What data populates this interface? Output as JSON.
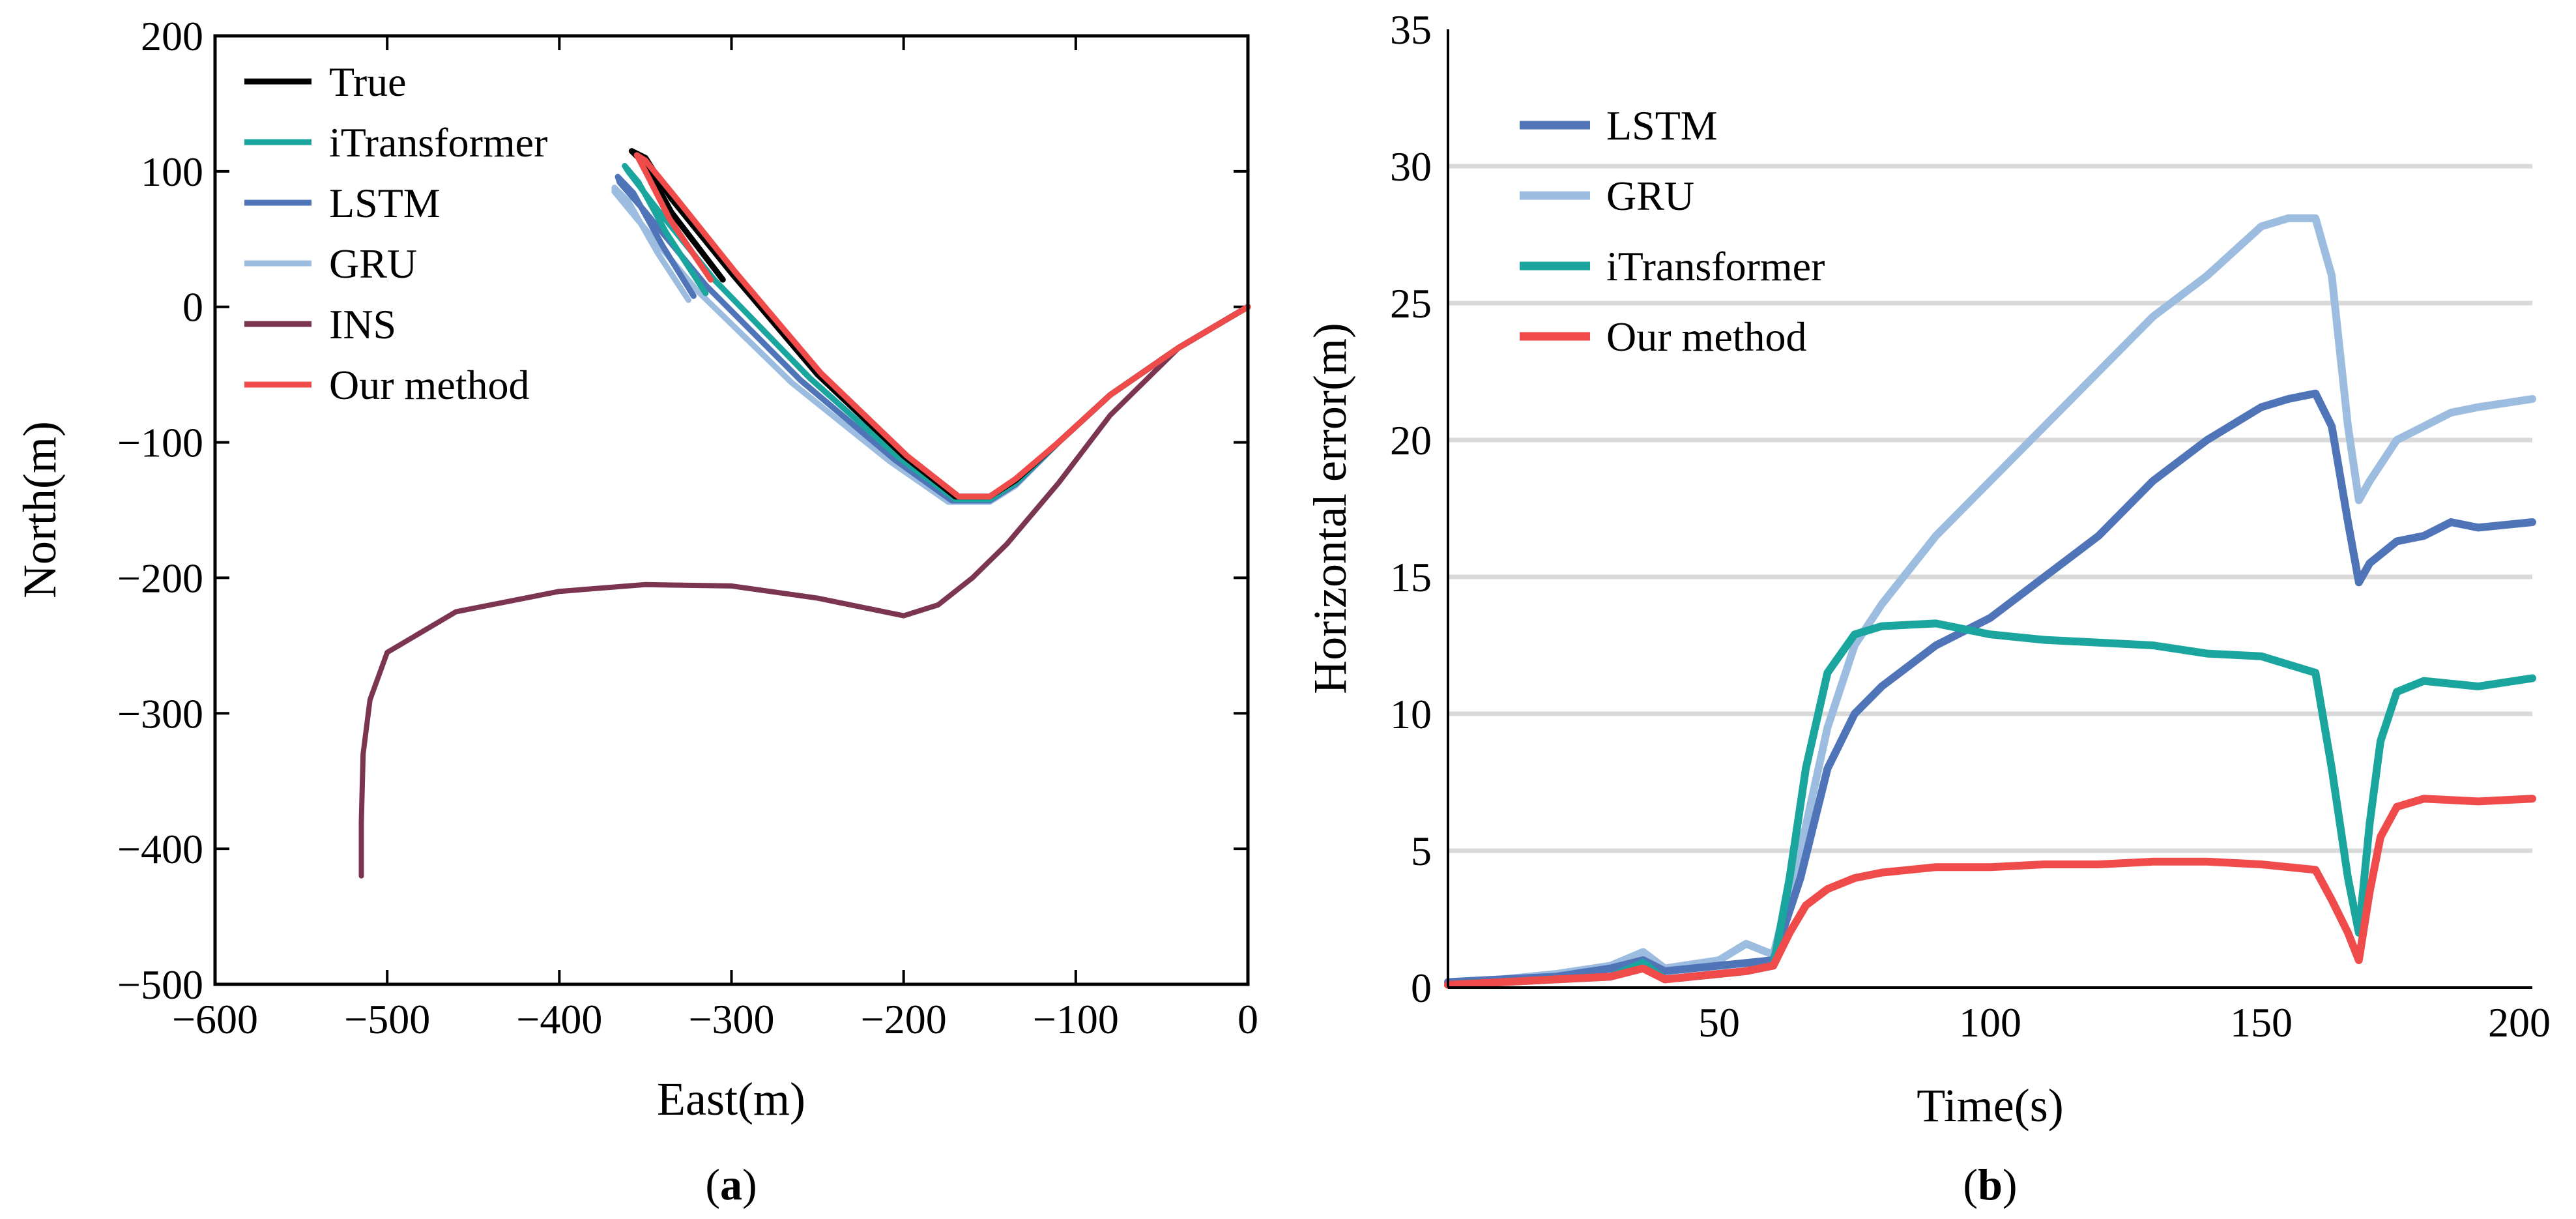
{
  "chart_data": [
    {
      "type": "line",
      "caption": {
        "open": "(",
        "letter": "a",
        "close": ")"
      },
      "xlabel": "East(m)",
      "ylabel": "North(m)",
      "xlim": [
        -600,
        0
      ],
      "ylim": [
        -500,
        200
      ],
      "xticks": [
        -600,
        -500,
        -400,
        -300,
        -200,
        -100,
        0
      ],
      "yticks": [
        200,
        100,
        0,
        -100,
        -200,
        -300,
        -400,
        -500
      ],
      "xtick_labels": [
        "−600",
        "−500",
        "−400",
        "−300",
        "−200",
        "−100",
        "0"
      ],
      "ytick_labels": [
        "200",
        "100",
        "0",
        "−100",
        "−200",
        "−300",
        "−400",
        "−500"
      ],
      "grid": false,
      "legend_position": "top-left",
      "series": [
        {
          "name": "True",
          "color": "#000000",
          "x": [
            0,
            -40,
            -80,
            -110,
            -135,
            -150,
            -170,
            -200,
            -250,
            -300,
            -335,
            -350,
            -358,
            -350,
            -335,
            -305
          ],
          "y": [
            0,
            -30,
            -65,
            -100,
            -128,
            -140,
            -140,
            -110,
            -50,
            25,
            80,
            110,
            115,
            105,
            70,
            20
          ]
        },
        {
          "name": "iTransformer",
          "color": "#1aa59e",
          "x": [
            0,
            -40,
            -80,
            -110,
            -135,
            -150,
            -170,
            -202,
            -255,
            -310,
            -345,
            -360,
            -362,
            -354,
            -338,
            -315
          ],
          "y": [
            0,
            -30,
            -65,
            -100,
            -130,
            -142,
            -142,
            -112,
            -52,
            20,
            75,
            100,
            104,
            92,
            55,
            10
          ]
        },
        {
          "name": "LSTM",
          "color": "#4f74b8",
          "x": [
            0,
            -40,
            -80,
            -110,
            -135,
            -150,
            -172,
            -205,
            -260,
            -315,
            -350,
            -365,
            -366,
            -357,
            -340,
            -322
          ],
          "y": [
            0,
            -30,
            -65,
            -100,
            -131,
            -143,
            -143,
            -113,
            -54,
            16,
            70,
            92,
            96,
            84,
            45,
            8
          ]
        },
        {
          "name": "GRU",
          "color": "#9dbde0",
          "x": [
            0,
            -40,
            -80,
            -110,
            -135,
            -150,
            -174,
            -208,
            -265,
            -320,
            -355,
            -368,
            -368,
            -360,
            -343,
            -325
          ],
          "y": [
            0,
            -30,
            -65,
            -100,
            -132,
            -144,
            -144,
            -114,
            -56,
            12,
            65,
            85,
            88,
            78,
            40,
            5
          ]
        },
        {
          "name": "INS",
          "color": "#7b3550",
          "x": [
            0,
            -40,
            -80,
            -110,
            -140,
            -160,
            -180,
            -200,
            -250,
            -300,
            -350,
            -400,
            -460,
            -500,
            -510,
            -514,
            -515,
            -515
          ],
          "y": [
            0,
            -30,
            -80,
            -130,
            -175,
            -200,
            -220,
            -228,
            -215,
            -206,
            -205,
            -210,
            -225,
            -255,
            -290,
            -330,
            -380,
            -420
          ]
        },
        {
          "name": "Our method",
          "color": "#f04b4b",
          "x": [
            0,
            -40,
            -80,
            -110,
            -135,
            -150,
            -168,
            -198,
            -248,
            -298,
            -332,
            -350,
            -355,
            -350,
            -336,
            -312
          ],
          "y": [
            0,
            -30,
            -65,
            -100,
            -127,
            -140,
            -140,
            -110,
            -49,
            26,
            80,
            108,
            112,
            100,
            65,
            20
          ]
        }
      ]
    },
    {
      "type": "line",
      "caption": {
        "open": "(",
        "letter": "b",
        "close": ")"
      },
      "xlabel": "Time(s)",
      "ylabel": "Horizontal error(m)",
      "xlim": [
        0,
        200
      ],
      "ylim": [
        0,
        35
      ],
      "xticks": [
        50,
        100,
        150,
        200
      ],
      "yticks": [
        0,
        5,
        10,
        15,
        20,
        25,
        30,
        35
      ],
      "xtick_labels": [
        "50",
        "100",
        "150",
        "200"
      ],
      "ytick_labels": [
        "0",
        "5",
        "10",
        "15",
        "20",
        "25",
        "30",
        "35"
      ],
      "grid": true,
      "legend_position": "top-left",
      "series": [
        {
          "name": "LSTM",
          "color": "#4f74b8",
          "x": [
            0,
            10,
            20,
            30,
            36,
            40,
            50,
            55,
            60,
            65,
            70,
            75,
            80,
            90,
            100,
            110,
            120,
            130,
            140,
            150,
            155,
            160,
            163,
            166,
            168,
            170,
            175,
            180,
            185,
            190,
            200
          ],
          "y": [
            0.2,
            0.3,
            0.4,
            0.7,
            1.0,
            0.6,
            0.8,
            0.9,
            1.0,
            4.0,
            8.0,
            10.0,
            11.0,
            12.5,
            13.5,
            15.0,
            16.5,
            18.5,
            20.0,
            21.2,
            21.5,
            21.7,
            20.5,
            17.0,
            14.8,
            15.5,
            16.3,
            16.5,
            17.0,
            16.8,
            17.0
          ]
        },
        {
          "name": "GRU",
          "color": "#9dbde0",
          "x": [
            0,
            10,
            20,
            30,
            36,
            40,
            50,
            55,
            60,
            65,
            70,
            75,
            80,
            90,
            100,
            110,
            120,
            130,
            140,
            150,
            155,
            160,
            163,
            166,
            168,
            170,
            175,
            180,
            185,
            190,
            200
          ],
          "y": [
            0.2,
            0.3,
            0.5,
            0.8,
            1.3,
            0.7,
            1.0,
            1.6,
            1.2,
            5.0,
            9.5,
            12.5,
            14.0,
            16.5,
            18.5,
            20.5,
            22.5,
            24.5,
            26.0,
            27.8,
            28.1,
            28.1,
            26.0,
            20.5,
            17.8,
            18.5,
            20.0,
            20.5,
            21.0,
            21.2,
            21.5
          ]
        },
        {
          "name": "iTransformer",
          "color": "#1aa59e",
          "x": [
            0,
            10,
            20,
            30,
            36,
            40,
            50,
            55,
            60,
            63,
            66,
            70,
            75,
            80,
            90,
            100,
            110,
            120,
            130,
            140,
            150,
            155,
            160,
            163,
            166,
            168,
            170,
            172,
            175,
            180,
            190,
            200
          ],
          "y": [
            0.1,
            0.2,
            0.3,
            0.4,
            0.9,
            0.3,
            0.5,
            0.6,
            0.8,
            4.0,
            8.0,
            11.5,
            12.9,
            13.2,
            13.3,
            12.9,
            12.7,
            12.6,
            12.5,
            12.2,
            12.1,
            11.8,
            11.5,
            8.0,
            4.0,
            2.0,
            6.0,
            9.0,
            10.8,
            11.2,
            11.0,
            11.3
          ]
        },
        {
          "name": "Our method",
          "color": "#f04b4b",
          "x": [
            0,
            10,
            20,
            30,
            36,
            40,
            50,
            55,
            60,
            63,
            66,
            70,
            75,
            80,
            90,
            100,
            110,
            120,
            130,
            140,
            150,
            155,
            160,
            163,
            166,
            168,
            170,
            172,
            175,
            180,
            190,
            200
          ],
          "y": [
            0.1,
            0.2,
            0.3,
            0.4,
            0.7,
            0.3,
            0.5,
            0.6,
            0.8,
            2.0,
            3.0,
            3.6,
            4.0,
            4.2,
            4.4,
            4.4,
            4.5,
            4.5,
            4.6,
            4.6,
            4.5,
            4.4,
            4.3,
            3.2,
            2.0,
            1.0,
            3.5,
            5.5,
            6.6,
            6.9,
            6.8,
            6.9
          ]
        }
      ]
    }
  ]
}
